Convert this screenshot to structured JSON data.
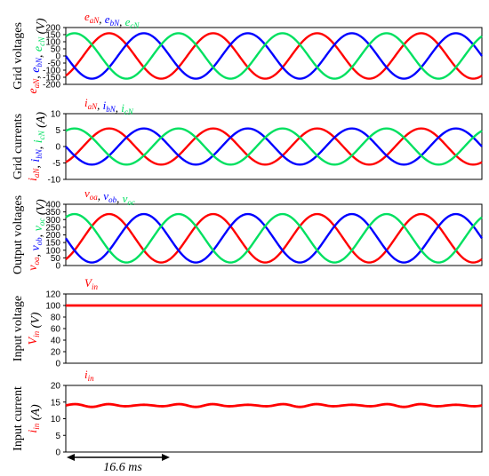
{
  "colors": {
    "a": "#ff0000",
    "b": "#0000ff",
    "c": "#00e060",
    "in": "#ff0000"
  },
  "scale_bar": {
    "label": "16.6 ms",
    "duration_ms": 16.6
  },
  "chart_data": [
    {
      "type": "line",
      "ylabel_plain": "Grid voltages",
      "ylabel_series": [
        {
          "base": "e",
          "sub": "aN"
        },
        {
          "base": "e",
          "sub": "bN"
        },
        {
          "base": "e",
          "sub": "cN"
        }
      ],
      "ylabel_unit": "(V)",
      "legend": [
        {
          "base": "e",
          "sub": "aN",
          "color": "#ff0000"
        },
        {
          "base": "e",
          "sub": "bN",
          "color": "#0000ff"
        },
        {
          "base": "e",
          "sub": "cN",
          "color": "#00e060"
        }
      ],
      "yticks": [
        "200",
        "150",
        "100",
        "50",
        "0",
        "-50",
        "-100",
        "-150",
        "-200"
      ],
      "ylim": [
        -200,
        200
      ],
      "waveform": {
        "kind": "three-phase",
        "offset": 0,
        "amplitude": 160,
        "phase_a_deg": -60
      },
      "cycles": 4
    },
    {
      "type": "line",
      "ylabel_plain": "Grid currents",
      "ylabel_series": [
        {
          "base": "i",
          "sub": "aN"
        },
        {
          "base": "i",
          "sub": "bN"
        },
        {
          "base": "i",
          "sub": "cN"
        }
      ],
      "ylabel_unit": "(A)",
      "legend": [
        {
          "base": "i",
          "sub": "aN",
          "color": "#ff0000"
        },
        {
          "base": "i",
          "sub": "bN",
          "color": "#0000ff"
        },
        {
          "base": "i",
          "sub": "cN",
          "color": "#00e060"
        }
      ],
      "yticks": [
        "10",
        "5",
        "0",
        "-5",
        "-10"
      ],
      "ylim": [
        -10,
        10
      ],
      "waveform": {
        "kind": "three-phase",
        "offset": 0,
        "amplitude": 5.5,
        "phase_a_deg": -60
      },
      "cycles": 4
    },
    {
      "type": "line",
      "ylabel_plain": "Output voltages",
      "ylabel_series": [
        {
          "base": "v",
          "sub": "oa"
        },
        {
          "base": "v",
          "sub": "ob"
        },
        {
          "base": "v",
          "sub": "oc"
        }
      ],
      "ylabel_unit": "(V)",
      "legend": [
        {
          "base": "v",
          "sub": "oa",
          "color": "#ff0000"
        },
        {
          "base": "v",
          "sub": "ob",
          "color": "#0000ff"
        },
        {
          "base": "v",
          "sub": "oc",
          "color": "#00e060"
        }
      ],
      "yticks": [
        "400",
        "350",
        "300",
        "250",
        "200",
        "150",
        "100",
        "50",
        "0"
      ],
      "ylim": [
        0,
        400
      ],
      "waveform": {
        "kind": "three-phase",
        "offset": 178,
        "amplitude": 158,
        "phase_a_deg": -60
      },
      "cycles": 4
    },
    {
      "type": "line",
      "ylabel_plain": "Input voltage",
      "ylabel_series": [
        {
          "base": "V",
          "sub": "in"
        }
      ],
      "ylabel_unit": "(V)",
      "legend": [
        {
          "base": "V",
          "sub": "in",
          "color": "#ff0000"
        }
      ],
      "yticks": [
        "120",
        "100",
        "80",
        "60",
        "40",
        "20",
        "0"
      ],
      "ylim": [
        0,
        120
      ],
      "waveform": {
        "kind": "dc",
        "offset": 100,
        "ripple": 0
      },
      "cycles": 4
    },
    {
      "type": "line",
      "ylabel_plain": "Input current",
      "ylabel_series": [
        {
          "base": "i",
          "sub": "in"
        }
      ],
      "ylabel_unit": "(A)",
      "legend": [
        {
          "base": "i",
          "sub": "in",
          "color": "#ff0000"
        }
      ],
      "yticks": [
        "20",
        "15",
        "10",
        "5",
        "0"
      ],
      "ylim": [
        0,
        20
      ],
      "waveform": {
        "kind": "dc",
        "offset": 14,
        "ripple": 0.45
      },
      "cycles": 4
    }
  ]
}
